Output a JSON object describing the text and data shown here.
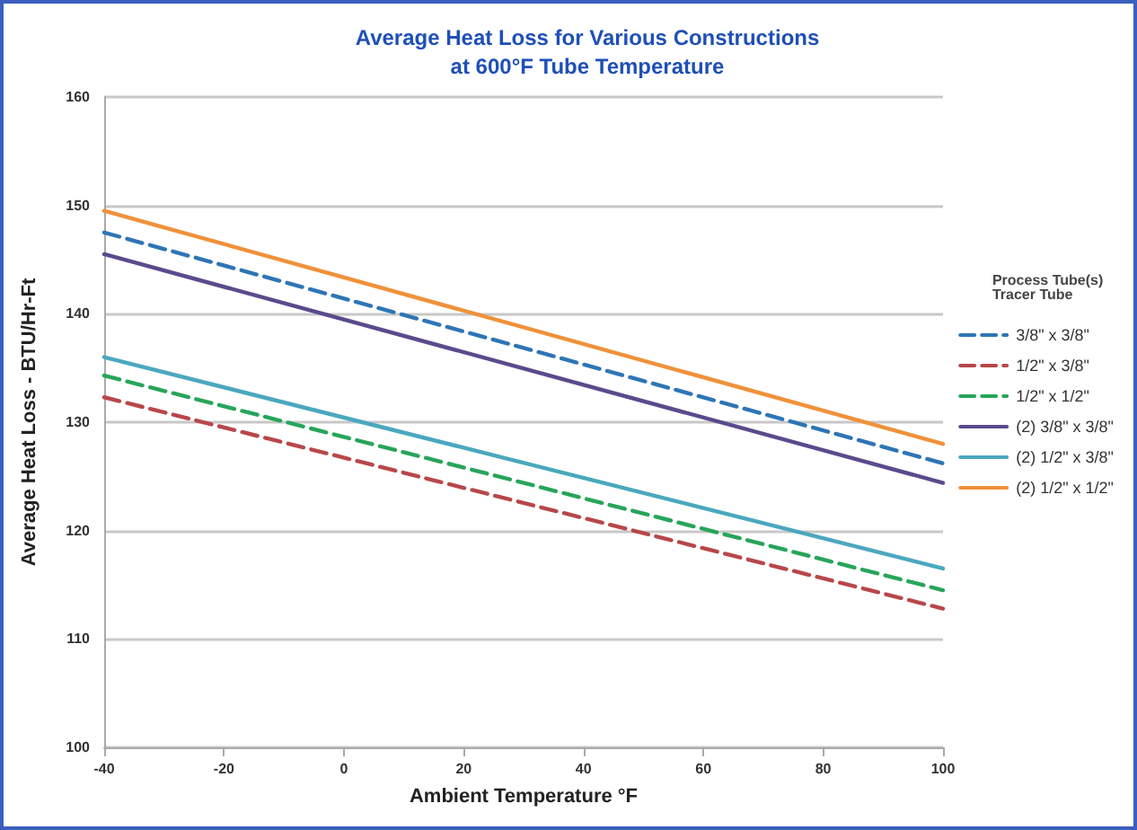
{
  "chart_data": {
    "type": "line",
    "title": "Average Heat Loss for Various Constructions\nat 600°F Tube Temperature",
    "xlabel": "Ambient Temperature °F",
    "ylabel": "Average Heat Loss - BTU/Hr-Ft",
    "legend_title": "Process Tube(s)    Tracer Tube",
    "x": [
      -40,
      100
    ],
    "series": [
      {
        "name": "3/8\" x 3/8\"",
        "color": "#2e75b6",
        "line_style": "dashed",
        "values": [
          147.5,
          126.2
        ]
      },
      {
        "name": "1/2\" x 3/8\"",
        "color": "#b8474a",
        "line_style": "dashed",
        "values": [
          132.3,
          112.8
        ]
      },
      {
        "name": "1/2\" x 1/2\"",
        "color": "#27a55a",
        "line_style": "dashed",
        "values": [
          134.3,
          114.5
        ]
      },
      {
        "name": "(2) 3/8\" x 3/8\"",
        "color": "#5b4a8c",
        "line_style": "solid",
        "values": [
          145.5,
          124.4
        ]
      },
      {
        "name": "(2) 1/2\" x 3/8\"",
        "color": "#4aa8be",
        "line_style": "solid",
        "values": [
          136,
          116.5
        ]
      },
      {
        "name": "(2) 1/2\" x 1/2\"",
        "color": "#f0913a",
        "line_style": "solid",
        "values": [
          149.5,
          128
        ]
      }
    ],
    "xlim": [
      -40,
      100
    ],
    "xticks": [
      -40,
      -20,
      0,
      20,
      40,
      60,
      80,
      100
    ],
    "ylim": [
      100,
      160
    ],
    "yticks": [
      100,
      110,
      120,
      130,
      140,
      150,
      160
    ],
    "grid": "y",
    "legend": "right",
    "marker": "none"
  }
}
